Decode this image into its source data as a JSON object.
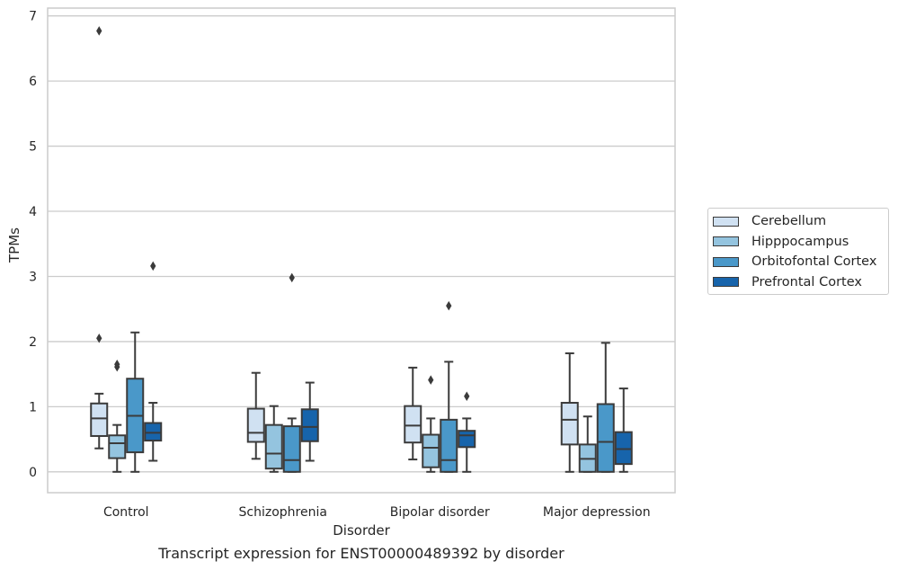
{
  "caption": "Transcript expression for ENST00000489392 by disorder",
  "chart_data": {
    "type": "boxplot",
    "xlabel": "Disorder",
    "ylabel": "TPMs",
    "ylim": [
      -0.32,
      7.12
    ],
    "yticks": [
      0,
      1,
      2,
      3,
      4,
      5,
      6,
      7
    ],
    "grid": "horizontal",
    "legend_position": "right, outside plot",
    "categories": [
      "Control",
      "Schizophrenia",
      "Bipolar disorder",
      "Major depression"
    ],
    "series": [
      {
        "name": "Cerebellum",
        "color": "#d0e1f2",
        "boxes": [
          {
            "whislo": 0.36,
            "q1": 0.55,
            "med": 0.82,
            "q3": 1.05,
            "whishi": 1.2,
            "fliers": [
              2.05,
              6.77
            ]
          },
          {
            "whislo": 0.2,
            "q1": 0.46,
            "med": 0.6,
            "q3": 0.97,
            "whishi": 1.52,
            "fliers": []
          },
          {
            "whislo": 0.19,
            "q1": 0.45,
            "med": 0.71,
            "q3": 1.01,
            "whishi": 1.6,
            "fliers": []
          },
          {
            "whislo": 0.0,
            "q1": 0.42,
            "med": 0.8,
            "q3": 1.06,
            "whishi": 1.82,
            "fliers": []
          }
        ]
      },
      {
        "name": "Hipppocampus",
        "color": "#94c4df",
        "boxes": [
          {
            "whislo": 0.0,
            "q1": 0.21,
            "med": 0.44,
            "q3": 0.56,
            "whishi": 0.72,
            "fliers": [
              1.61,
              1.65
            ]
          },
          {
            "whislo": 0.0,
            "q1": 0.05,
            "med": 0.28,
            "q3": 0.72,
            "whishi": 1.01,
            "fliers": []
          },
          {
            "whislo": 0.0,
            "q1": 0.07,
            "med": 0.37,
            "q3": 0.57,
            "whishi": 0.82,
            "fliers": [
              1.41
            ]
          },
          {
            "whislo": 0.0,
            "q1": 0.0,
            "med": 0.2,
            "q3": 0.42,
            "whishi": 0.85,
            "fliers": []
          }
        ]
      },
      {
        "name": "Orbitofontal Cortex",
        "color": "#4a98c9",
        "boxes": [
          {
            "whislo": 0.0,
            "q1": 0.3,
            "med": 0.86,
            "q3": 1.43,
            "whishi": 2.14,
            "fliers": []
          },
          {
            "whislo": 0.0,
            "q1": 0.0,
            "med": 0.18,
            "q3": 0.7,
            "whishi": 0.82,
            "fliers": [
              2.98
            ]
          },
          {
            "whislo": 0.0,
            "q1": 0.0,
            "med": 0.18,
            "q3": 0.8,
            "whishi": 1.69,
            "fliers": [
              2.55
            ]
          },
          {
            "whislo": 0.0,
            "q1": 0.0,
            "med": 0.46,
            "q3": 1.04,
            "whishi": 1.98,
            "fliers": []
          }
        ]
      },
      {
        "name": "Prefrontal Cortex",
        "color": "#1764ab",
        "boxes": [
          {
            "whislo": 0.17,
            "q1": 0.48,
            "med": 0.6,
            "q3": 0.75,
            "whishi": 1.06,
            "fliers": [
              3.16
            ]
          },
          {
            "whislo": 0.17,
            "q1": 0.47,
            "med": 0.69,
            "q3": 0.96,
            "whishi": 1.37,
            "fliers": []
          },
          {
            "whislo": 0.0,
            "q1": 0.38,
            "med": 0.56,
            "q3": 0.63,
            "whishi": 0.82,
            "fliers": [
              1.16
            ]
          },
          {
            "whislo": 0.0,
            "q1": 0.12,
            "med": 0.35,
            "q3": 0.61,
            "whishi": 1.28,
            "fliers": []
          }
        ]
      }
    ]
  }
}
